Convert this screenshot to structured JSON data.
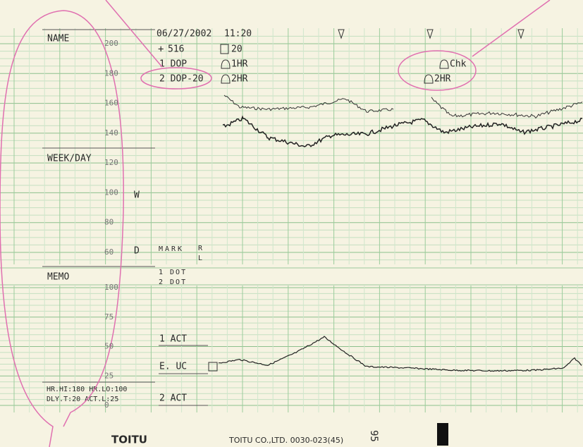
{
  "header": {
    "name_label": "NAME",
    "week_day_label": "WEEK/DAY",
    "memo_label": "MEMO",
    "week_mark": "W",
    "day_mark": "D"
  },
  "fhr_scale": [
    200,
    180,
    160,
    140,
    120,
    100,
    80,
    60
  ],
  "uc_scale": [
    100,
    75,
    50,
    25,
    0
  ],
  "info": {
    "date": "06/27/2002",
    "time": "11:20",
    "speed": "516",
    "interval": "20",
    "channel1": "1 DOP",
    "alarm1": "1HR",
    "channel2": "2 DOP-20",
    "alarm2": "2HR",
    "check": "Chk",
    "alarm3": "2HR"
  },
  "markers": {
    "mark": "MARK",
    "right": "R",
    "left": "L",
    "dot1": "1 DOT",
    "dot2": "2 DOT",
    "act1": "1 ACT",
    "uc": "E. UC",
    "act2": "2 ACT"
  },
  "settings": [
    "HR.HI:180 HR.LO:100",
    "DLY.T:20 ACT.L:25"
  ],
  "footer": {
    "brand": "TOITU",
    "company": "TOITU CO.,LTD. 0030-023(45)",
    "page": "95"
  }
}
